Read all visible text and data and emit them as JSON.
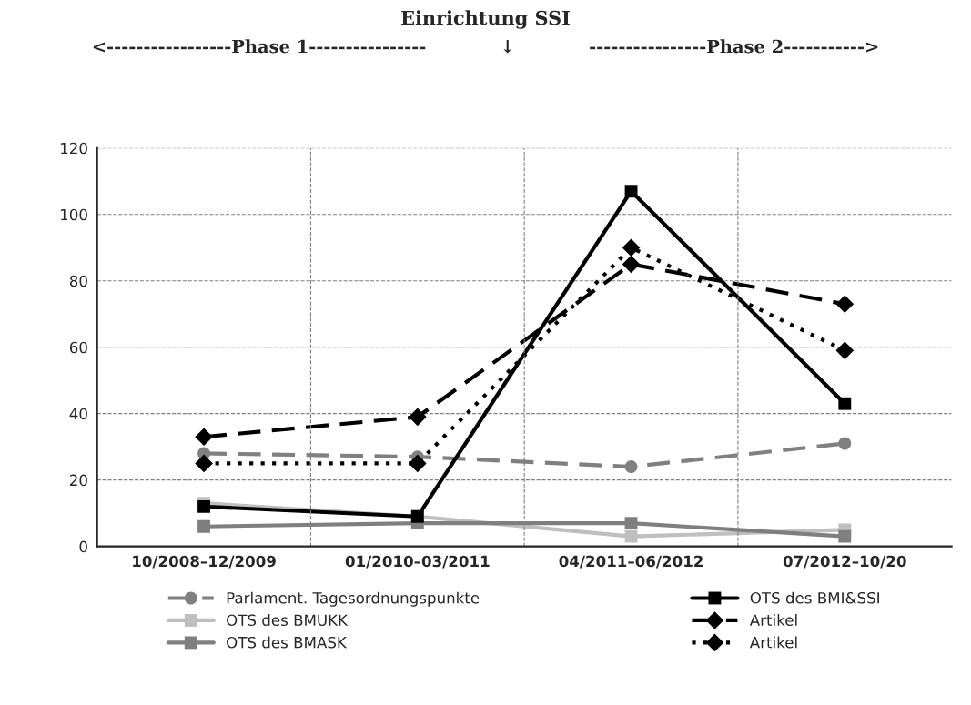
{
  "chart_data": {
    "type": "line",
    "title": "Einrichtung SSI",
    "subtitle": "<-----------------Phase 1----------------            ↓            ----------------Phase 2----------->",
    "categories": [
      "10/2008–12/2009",
      "01/2010–03/2011",
      "04/2011–06/2012",
      "07/2012–10/20"
    ],
    "ylim": [
      0,
      120
    ],
    "yticks": [
      0,
      20,
      40,
      60,
      80,
      100,
      120
    ],
    "grid": true,
    "legend": "bottom",
    "series": [
      {
        "name": "Parlament. Tagesordnungspunkte",
        "color": "#808080",
        "values": [
          28,
          27,
          24,
          31
        ],
        "marker": "circle",
        "line_style": "dashed"
      },
      {
        "name": "OTS des BMUKK",
        "color": "#bfbfbf",
        "values": [
          13,
          9,
          3,
          5
        ],
        "marker": "square",
        "line_style": "solid"
      },
      {
        "name": "OTS des BMASK",
        "color": "#7f7f7f",
        "values": [
          6,
          7,
          7,
          3
        ],
        "marker": "square",
        "line_style": "solid"
      },
      {
        "name": "OTS des BMI&SSI",
        "color": "#000000",
        "values": [
          12,
          9,
          107,
          43
        ],
        "marker": "square",
        "line_style": "solid"
      },
      {
        "name": "Artikel",
        "color": "#000000",
        "values": [
          33,
          39,
          85,
          73
        ],
        "marker": "diamond",
        "line_style": "dashed"
      },
      {
        "name": "Artikel",
        "color": "#000000",
        "values": [
          25,
          25,
          90,
          59
        ],
        "marker": "diamond",
        "line_style": "dotted"
      }
    ]
  }
}
